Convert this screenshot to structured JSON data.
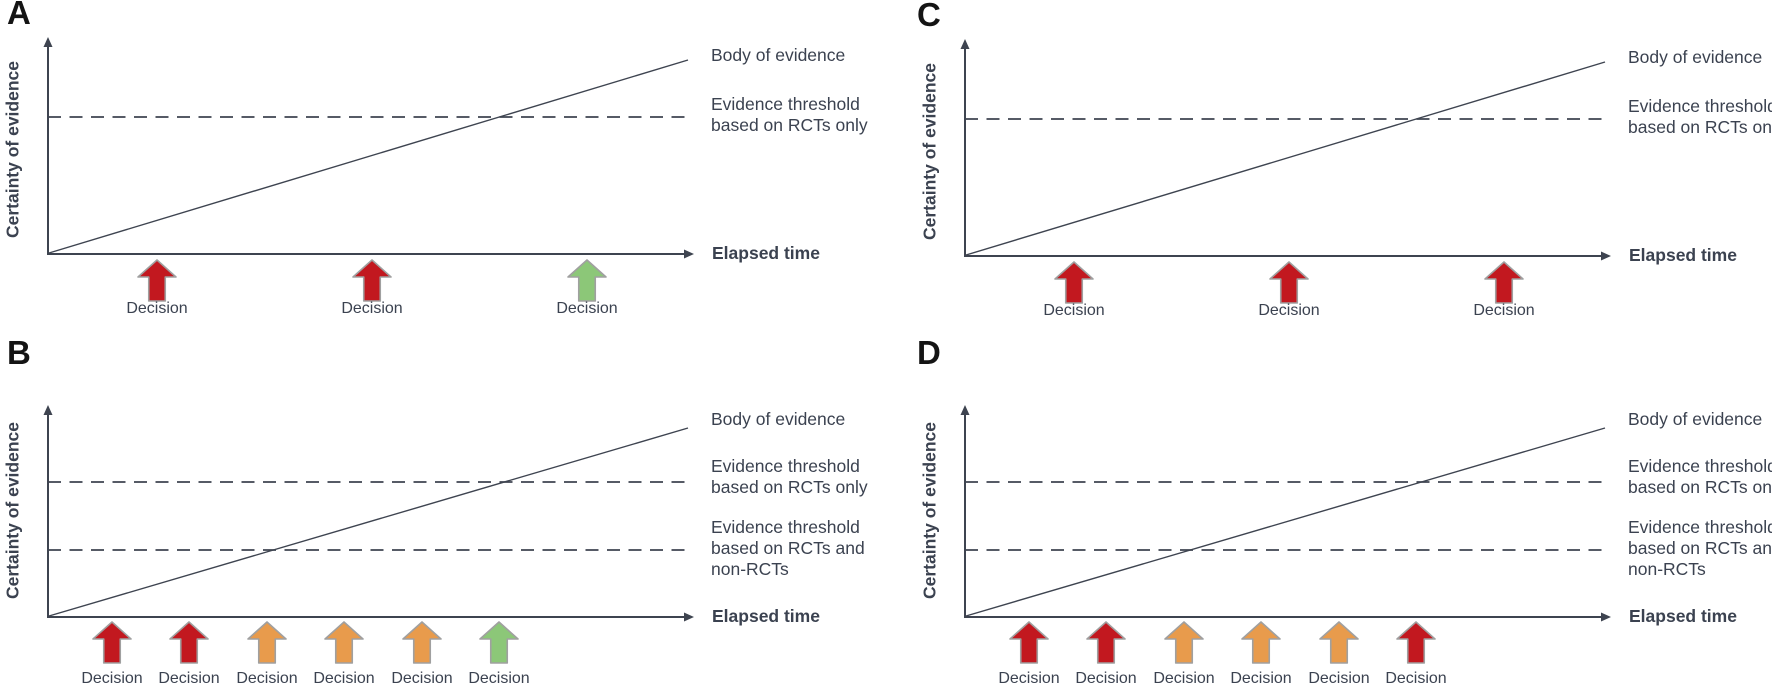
{
  "figure": {
    "colors": {
      "line": "#3e4450",
      "text": "#3b4250",
      "letter": "#141414",
      "arrow_outline": "#a0a0a0",
      "red": "#c2181f",
      "orange": "#e89b4c",
      "green": "#8cc778"
    },
    "labels": {
      "y_axis": "Certainty of evidence",
      "x_axis": "Elapsed time",
      "body_of_evidence": "Body of evidence",
      "threshold_rct_line1": "Evidence threshold",
      "threshold_rct_line2": "based on RCTs only",
      "threshold_nonrct_line1": "Evidence threshold",
      "threshold_nonrct_line2": "based on RCTs and",
      "threshold_nonrct_line3": "non-RCTs",
      "decision": "Decision"
    },
    "panels": [
      {
        "letter": "A",
        "variant": "single",
        "arrows": [
          "red",
          "red",
          "green"
        ]
      },
      {
        "letter": "B",
        "variant": "double",
        "arrows": [
          "red",
          "red",
          "orange",
          "orange",
          "orange",
          "green"
        ]
      },
      {
        "letter": "C",
        "variant": "single",
        "arrows": [
          "red",
          "red",
          "red"
        ]
      },
      {
        "letter": "D",
        "variant": "double",
        "arrows": [
          "red",
          "red",
          "orange",
          "orange",
          "orange",
          "red"
        ]
      }
    ]
  }
}
